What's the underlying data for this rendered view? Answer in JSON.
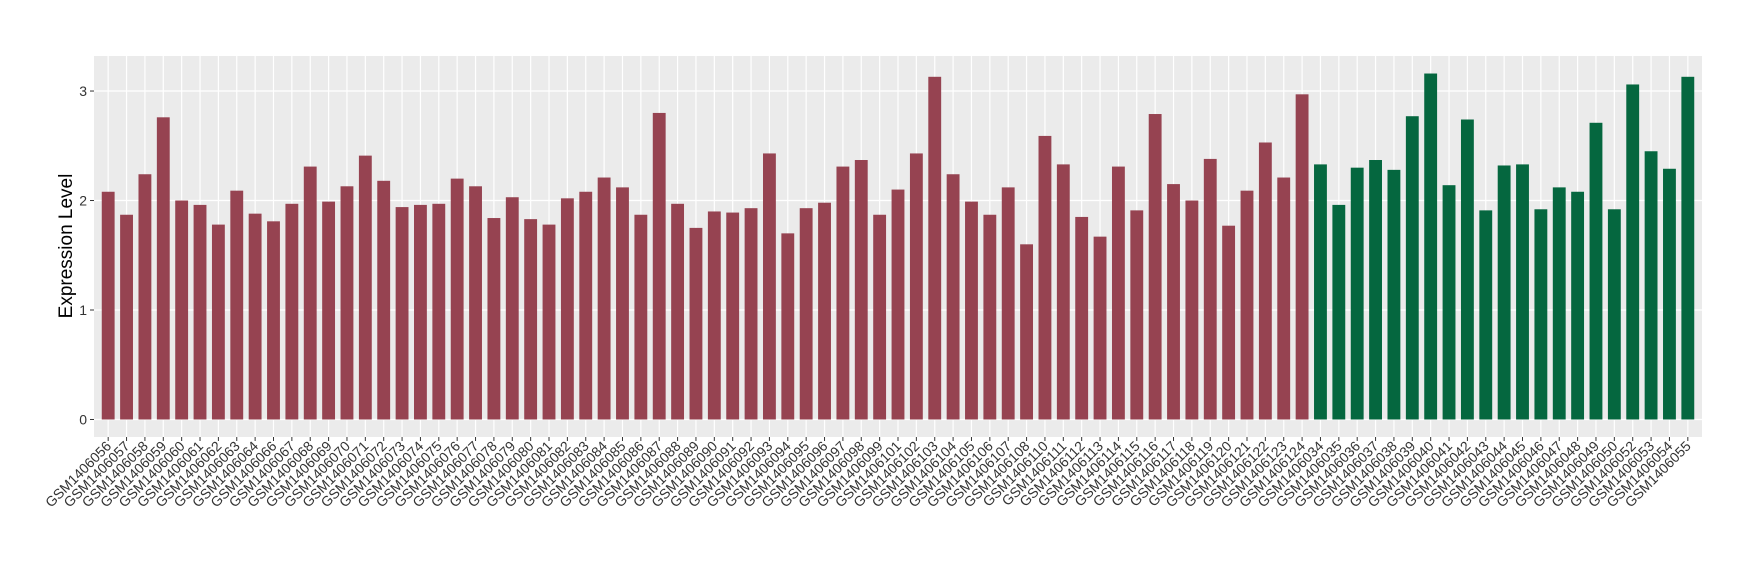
{
  "chart_data": {
    "type": "bar",
    "y_label": "Expression Level",
    "categories": [
      "GSM1406056",
      "GSM1406057",
      "GSM1406058",
      "GSM1406059",
      "GSM1406060",
      "GSM1406061",
      "GSM1406062",
      "GSM1406063",
      "GSM1406064",
      "GSM1406066",
      "GSM1406067",
      "GSM1406068",
      "GSM1406069",
      "GSM1406070",
      "GSM1406071",
      "GSM1406072",
      "GSM1406073",
      "GSM1406074",
      "GSM1406075",
      "GSM1406076",
      "GSM1406077",
      "GSM1406078",
      "GSM1406079",
      "GSM1406080",
      "GSM1406081",
      "GSM1406082",
      "GSM1406083",
      "GSM1406084",
      "GSM1406085",
      "GSM1406086",
      "GSM1406087",
      "GSM1406088",
      "GSM1406089",
      "GSM1406090",
      "GSM1406091",
      "GSM1406092",
      "GSM1406093",
      "GSM1406094",
      "GSM1406095",
      "GSM1406096",
      "GSM1406097",
      "GSM1406098",
      "GSM1406099",
      "GSM1406101",
      "GSM1406102",
      "GSM1406103",
      "GSM1406104",
      "GSM1406105",
      "GSM1406106",
      "GSM1406107",
      "GSM1406108",
      "GSM1406110",
      "GSM1406111",
      "GSM1406112",
      "GSM1406113",
      "GSM1406114",
      "GSM1406115",
      "GSM1406116",
      "GSM1406117",
      "GSM1406118",
      "GSM1406119",
      "GSM1406120",
      "GSM1406121",
      "GSM1406122",
      "GSM1406123",
      "GSM1406124",
      "GSM1406034",
      "GSM1406035",
      "GSM1406036",
      "GSM1406037",
      "GSM1406038",
      "GSM1406039",
      "GSM1406040",
      "GSM1406041",
      "GSM1406042",
      "GSM1406043",
      "GSM1406044",
      "GSM1406045",
      "GSM1406046",
      "GSM1406047",
      "GSM1406048",
      "GSM1406049",
      "GSM1406050",
      "GSM1406052",
      "GSM1406053",
      "GSM1406054",
      "GSM1406055"
    ],
    "series": [
      {
        "color": "#964351",
        "values": [
          2.08,
          1.87,
          2.24,
          2.76,
          2.0,
          1.96,
          1.78,
          2.09,
          1.88,
          1.81,
          1.97,
          2.31,
          1.99,
          2.13,
          2.41,
          2.18,
          1.94,
          1.96,
          1.97,
          2.2,
          2.13,
          1.84,
          2.03,
          1.83,
          1.78,
          2.02,
          2.08,
          2.21,
          2.12,
          1.87,
          2.8,
          1.97,
          1.75,
          1.9,
          1.89,
          1.93,
          2.43,
          1.7,
          1.93,
          1.98,
          2.31,
          2.37,
          1.87,
          2.1,
          2.43,
          3.13,
          2.24,
          1.99,
          1.87,
          2.12,
          1.6,
          2.59,
          2.33,
          1.85,
          1.67,
          2.31,
          1.91,
          2.79,
          2.15,
          2.0,
          2.38,
          1.77,
          2.09,
          2.53,
          2.21,
          2.97,
          null,
          null,
          null,
          null,
          null,
          null,
          null,
          null,
          null,
          null,
          null,
          null,
          null,
          null,
          null,
          null,
          null,
          null,
          null,
          null,
          null
        ]
      },
      {
        "color": "#05673f",
        "values": [
          null,
          null,
          null,
          null,
          null,
          null,
          null,
          null,
          null,
          null,
          null,
          null,
          null,
          null,
          null,
          null,
          null,
          null,
          null,
          null,
          null,
          null,
          null,
          null,
          null,
          null,
          null,
          null,
          null,
          null,
          null,
          null,
          null,
          null,
          null,
          null,
          null,
          null,
          null,
          null,
          null,
          null,
          null,
          null,
          null,
          null,
          null,
          null,
          null,
          null,
          null,
          null,
          null,
          null,
          null,
          null,
          null,
          null,
          null,
          null,
          null,
          null,
          null,
          null,
          null,
          null,
          2.33,
          1.96,
          2.3,
          2.37,
          2.28,
          2.77,
          3.16,
          2.14,
          2.74,
          1.91,
          2.32,
          2.33,
          1.92,
          2.12,
          2.08,
          2.71,
          1.92,
          3.06,
          2.45,
          2.29,
          3.13
        ]
      }
    ],
    "ylim": [
      -0.16,
      3.32
    ],
    "yticks": [
      0,
      1,
      2,
      3
    ],
    "grid": true
  }
}
